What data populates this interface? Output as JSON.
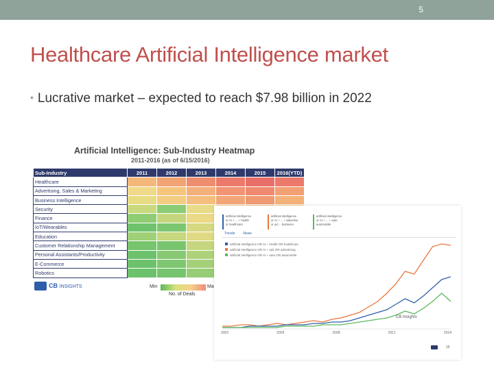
{
  "slide": {
    "number": "5",
    "title": "Healthcare Artificial Intelligence market",
    "bullet": "Lucrative market – expected to reach $7.98 billion in 2022"
  },
  "heatmap": {
    "title": "Artificial Intelligence: Sub-Industry Heatmap",
    "subtitle": "2011-2016 (as of 6/15/2016)",
    "header_label": "Sub-Industry",
    "years": [
      "2011",
      "2012",
      "2013",
      "2014",
      "2015",
      "2016(YTD)"
    ],
    "rows": [
      {
        "label": "Healthcare",
        "colors": [
          "#f4b87a",
          "#f2a374",
          "#ef8d6f",
          "#ec7a6b",
          "#ea6f68",
          "#ec7a6b"
        ]
      },
      {
        "label": "Advertising, Sales & Marketing",
        "colors": [
          "#f0d98a",
          "#f6c57c",
          "#f4b07a",
          "#f19473",
          "#ef8a70",
          "#f1a073"
        ]
      },
      {
        "label": "Business Intelligence",
        "colors": [
          "#e7dc84",
          "#f3cc82",
          "#f5bd7e",
          "#f2a576",
          "#f09a73",
          "#f3b27a"
        ]
      },
      {
        "label": "Security",
        "colors": [
          "#c9d97e",
          "#8ccc74",
          "#e9dc88",
          "#f5c880",
          "#f3b97b",
          "#f5c880"
        ]
      },
      {
        "label": "Finance",
        "colors": [
          "#8fcd74",
          "#c4d67d",
          "#ecd987",
          "#f5c880",
          "#f3b97b",
          "#f5c880"
        ]
      },
      {
        "label": "IoT/Wearables",
        "colors": [
          "#6fc36d",
          "#7dc670",
          "#d6d981",
          "#f1d588",
          "#f4c07e",
          "#f2d689"
        ]
      },
      {
        "label": "Education",
        "colors": [
          "#9fd077",
          "#c6d77e",
          "#e0da85",
          "#eed788",
          "#f3cc82",
          "#eed788"
        ]
      },
      {
        "label": "Customer Relationship Management",
        "colors": [
          "#76c46e",
          "#79c56f",
          "#c6d67e",
          "#e8da86",
          "#efd486",
          "#e3da86"
        ]
      },
      {
        "label": "Personal Assistants/Productivity",
        "colors": [
          "#6cc26c",
          "#88c973",
          "#aed27a",
          "#dad983",
          "#ead886",
          "#dad983"
        ]
      },
      {
        "label": "E-Commerce",
        "colors": [
          "#6cc26c",
          "#7fc671",
          "#a4d078",
          "#d3d881",
          "#e6d986",
          "#d3d881"
        ]
      },
      {
        "label": "Robotics",
        "colors": [
          "#6cc26c",
          "#76c46e",
          "#96cd76",
          "#c6d67e",
          "#dcd984",
          "#c6d67e"
        ]
      }
    ],
    "legend": {
      "min": "Min",
      "max": "Max",
      "caption": "No. of Deals"
    },
    "logo": {
      "brand": "CB",
      "suffix": "INSIGHTS"
    }
  },
  "trend_chart": {
    "terms": [
      {
        "line1": "artificial intelligence",
        "line2": "or AI + ... + health",
        "line3": "or healthcare",
        "color": "#2e5ea8"
      },
      {
        "line1": "artificial intelligence",
        "line2": "or AI + ... + advertise",
        "line3": "or ad ... business",
        "color": "#e8763a"
      },
      {
        "line1": "artificial intelligence",
        "line2": "or AI + ... + auto",
        "line3": "automobile",
        "color": "#5cb85c"
      }
    ],
    "tabs": [
      "Trends",
      "News"
    ],
    "series_labels": [
      {
        "text": "artificial intelligence OR AI + health OR healthcare",
        "color": "#2e5ea8"
      },
      {
        "text": "artificial intelligence OR AI + ads OR advertising",
        "color": "#e8763a"
      },
      {
        "text": "artificial intelligence OR AI + auto OR automobile",
        "color": "#5cb85c"
      }
    ],
    "x_ticks": [
      "2002",
      "2005",
      "2008",
      "2011",
      "2014"
    ],
    "watermark": "CB Insights",
    "corner_number": "15"
  },
  "chart_data": {
    "type": "line",
    "x": [
      0,
      4,
      8,
      12,
      16,
      20,
      24,
      28,
      32,
      36,
      40,
      44,
      48,
      52,
      56,
      60,
      64,
      68,
      72,
      76,
      80,
      84,
      88,
      92,
      96,
      100
    ],
    "series": [
      {
        "values": [
          2,
          2,
          3,
          3,
          2,
          3,
          4,
          3,
          4,
          5,
          6,
          5,
          7,
          8,
          10,
          12,
          16,
          20,
          26,
          33,
          42,
          40,
          50,
          60,
          62,
          61
        ],
        "color": "#e8763a"
      },
      {
        "values": [
          1,
          1,
          1,
          2,
          2,
          2,
          2,
          3,
          3,
          3,
          4,
          4,
          5,
          5,
          6,
          8,
          10,
          12,
          14,
          18,
          22,
          19,
          24,
          30,
          36,
          38
        ],
        "color": "#2e5ea8"
      },
      {
        "values": [
          1,
          1,
          1,
          1,
          1,
          1,
          1,
          2,
          2,
          2,
          2,
          3,
          3,
          3,
          4,
          5,
          6,
          7,
          8,
          10,
          13,
          11,
          15,
          20,
          26,
          20
        ],
        "color": "#5cb85c"
      }
    ],
    "ylim": [
      0,
      70
    ]
  }
}
